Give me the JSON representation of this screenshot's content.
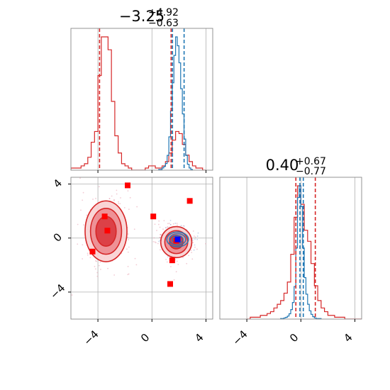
{
  "chart_data": {
    "type": "corner",
    "axis_range": [
      -6,
      4.5
    ],
    "ticks": [
      -4,
      0,
      4
    ],
    "tick_labels": [
      "−4",
      "0",
      "4"
    ],
    "grid": true,
    "colors": {
      "red": "#d62728",
      "blue": "#1f77b4",
      "grid": "#b0b0b0",
      "marker": "#ff0000"
    },
    "panels": [
      {
        "id": "hist-param1",
        "position": "top-left",
        "title": {
          "median": "−3.25",
          "plus": "+4.92",
          "minus": "−0.63"
        },
        "red_histogram": {
          "bin_edges": [
            -6.0,
            -5.75,
            -5.5,
            -5.25,
            -5.0,
            -4.75,
            -4.5,
            -4.25,
            -4.0,
            -3.75,
            -3.5,
            -3.25,
            -3.0,
            -2.75,
            -2.5,
            -2.25,
            -2.0,
            -1.75,
            -1.5,
            -1.25,
            -1.0,
            -0.75,
            -0.5,
            -0.25,
            0.0,
            0.25,
            0.5,
            0.75,
            1.0,
            1.25,
            1.5,
            1.75,
            2.0,
            2.25,
            2.5,
            2.75,
            3.0,
            3.25,
            3.5,
            3.75,
            4.0
          ],
          "counts": [
            1,
            1,
            1,
            2,
            3,
            6,
            13,
            18,
            44,
            62,
            62,
            56,
            32,
            16,
            8,
            3,
            2,
            1,
            0,
            0,
            0,
            0,
            1,
            2,
            2,
            1,
            1,
            2,
            4,
            8,
            14,
            18,
            17,
            12,
            7,
            4,
            2,
            1,
            1,
            0
          ]
        },
        "blue_histogram": {
          "bin_edges": [
            0.5,
            0.625,
            0.75,
            0.875,
            1.0,
            1.125,
            1.25,
            1.375,
            1.5,
            1.625,
            1.75,
            1.875,
            2.0,
            2.125,
            2.25,
            2.375,
            2.5,
            2.625,
            2.75,
            2.875,
            3.0
          ],
          "counts": [
            1,
            1,
            3,
            5,
            9,
            20,
            45,
            80,
            118,
            155,
            180,
            168,
            145,
            110,
            76,
            42,
            20,
            8,
            3,
            1
          ]
        },
        "red_quantile_lines": [
          -3.88,
          1.42
        ],
        "blue_quantile_lines": [
          1.52,
          2.38
        ]
      },
      {
        "id": "hist-param2",
        "position": "bottom-right",
        "title": {
          "median": "0.40",
          "plus": "+0.67",
          "minus": "−0.77"
        },
        "red_histogram": {
          "bin_edges": [
            -4.0,
            -3.75,
            -3.5,
            -3.25,
            -3.0,
            -2.75,
            -2.5,
            -2.25,
            -2.0,
            -1.75,
            -1.5,
            -1.25,
            -1.0,
            -0.75,
            -0.5,
            -0.25,
            0.0,
            0.25,
            0.5,
            0.75,
            1.0,
            1.25,
            1.5,
            1.75,
            2.0,
            2.25,
            2.5,
            2.75,
            3.0,
            3.25,
            3.5,
            3.75,
            4.0,
            4.25,
            4.5
          ],
          "counts": [
            0,
            1,
            1,
            1,
            2,
            2,
            3,
            4,
            6,
            8,
            10,
            14,
            20,
            35,
            55,
            72,
            62,
            48,
            42,
            30,
            18,
            10,
            6,
            4,
            2,
            2,
            1,
            1,
            1,
            0,
            0,
            0,
            0,
            0
          ]
        },
        "blue_histogram": {
          "bin_edges": [
            -1.5,
            -1.375,
            -1.25,
            -1.125,
            -1.0,
            -0.875,
            -0.75,
            -0.625,
            -0.5,
            -0.375,
            -0.25,
            -0.125,
            0.0,
            0.125,
            0.25,
            0.375,
            0.5,
            0.625,
            0.75,
            0.875,
            1.0,
            1.125,
            1.25,
            1.375,
            1.5
          ],
          "counts": [
            1,
            1,
            2,
            3,
            5,
            9,
            16,
            28,
            55,
            120,
            205,
            225,
            190,
            120,
            70,
            42,
            25,
            14,
            8,
            4,
            2,
            1,
            1,
            1
          ]
        },
        "red_quantile_lines": [
          -0.37,
          1.07
        ],
        "blue_quantile_lines": [
          -0.07,
          0.18
        ]
      },
      {
        "id": "scatter-2d",
        "position": "bottom-left",
        "red_contours": [
          {
            "cx": -3.4,
            "cy": 0.5,
            "rx": [
              1.55,
              1.15,
              0.75
            ],
            "ry": [
              2.25,
              1.7,
              1.1
            ]
          },
          {
            "cx": 1.8,
            "cy": -0.3,
            "rx": [
              1.15,
              0.85,
              0.5
            ],
            "ry": [
              1.15,
              0.85,
              0.5
            ]
          }
        ],
        "blue_contours": {
          "cx": 1.9,
          "cy": -0.1,
          "rx": [
            0.8,
            0.6,
            0.4,
            0.2
          ],
          "ry": [
            0.55,
            0.42,
            0.28,
            0.14
          ]
        },
        "markers": [
          {
            "x": -1.8,
            "y": 3.9
          },
          {
            "x": -3.5,
            "y": 1.6
          },
          {
            "x": -3.3,
            "y": 0.55
          },
          {
            "x": 0.1,
            "y": 1.6
          },
          {
            "x": 2.8,
            "y": 2.75
          },
          {
            "x": -4.4,
            "y": -1.0
          },
          {
            "x": 1.8,
            "y": -0.2
          },
          {
            "x": 1.5,
            "y": -1.65
          },
          {
            "x": 1.35,
            "y": -3.4
          }
        ],
        "blue_marker": {
          "x": 1.9,
          "y": -0.1
        }
      }
    ]
  }
}
